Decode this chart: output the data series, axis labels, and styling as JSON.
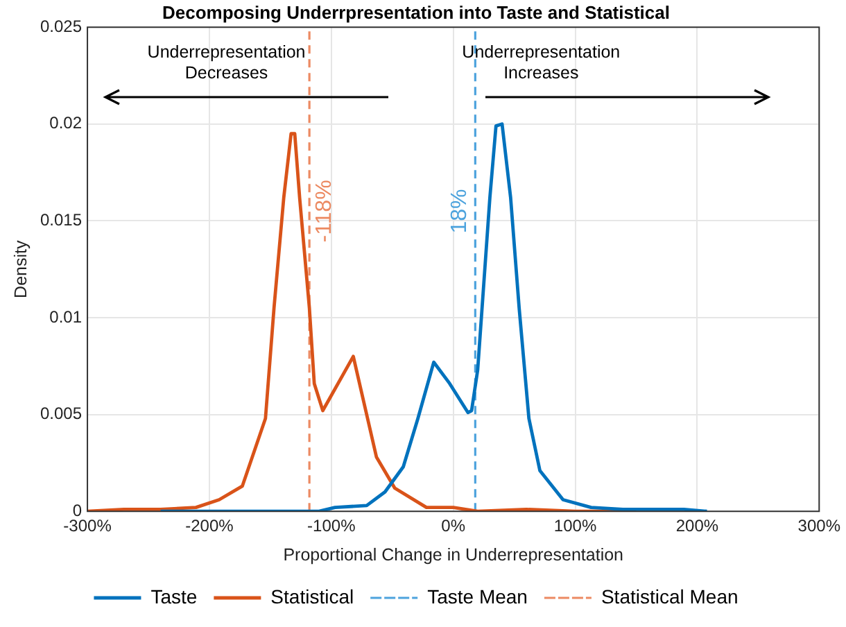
{
  "chart_data": {
    "type": "line",
    "title": "Decomposing Underrpresentation into Taste and Statistical",
    "xlabel": "Proportional Change in Underrepresentation",
    "ylabel": "Density",
    "xlim": [
      -300,
      300
    ],
    "xticks": [
      {
        "value": -300,
        "label": "-300%"
      },
      {
        "value": -200,
        "label": "-200%"
      },
      {
        "value": -100,
        "label": "-100%"
      },
      {
        "value": 0,
        "label": "0%"
      },
      {
        "value": 100,
        "label": "100%"
      },
      {
        "value": 200,
        "label": "200%"
      },
      {
        "value": 300,
        "label": "300%"
      }
    ],
    "ylim": [
      0,
      0.025
    ],
    "yticks": [
      0,
      0.005,
      0.01,
      0.015,
      0.02,
      0.025
    ],
    "grid": true,
    "legend": "bottom",
    "marker": "none",
    "series": [
      {
        "name": "Taste",
        "color": "#0072bd",
        "x": [
          -240,
          -200,
          -150,
          -110,
          -97,
          -71,
          -56,
          -41,
          -29,
          -16,
          -3,
          12,
          15,
          20,
          30,
          35,
          40,
          47,
          54,
          62,
          71,
          90,
          113,
          139,
          189,
          208
        ],
        "values": [
          0,
          0,
          0,
          0,
          0.0002,
          0.0003,
          0.001,
          0.0023,
          0.0048,
          0.0077,
          0.0066,
          0.0051,
          0.0052,
          0.0073,
          0.0162,
          0.0199,
          0.02,
          0.0162,
          0.0105,
          0.0048,
          0.0021,
          0.0006,
          0.0002,
          0.0001,
          0.0001,
          0
        ]
      },
      {
        "name": "Statistical",
        "color": "#d95319",
        "x": [
          -300,
          -270,
          -240,
          -211,
          -192,
          -173,
          -154,
          -147,
          -139,
          -133,
          -130,
          -126,
          -118,
          -114,
          -107,
          -82,
          -63,
          -48,
          -22,
          0,
          20,
          60,
          100,
          150
        ],
        "values": [
          0,
          0.0001,
          0.0001,
          0.0002,
          0.0006,
          0.0013,
          0.0048,
          0.0105,
          0.0162,
          0.0195,
          0.0195,
          0.0162,
          0.0105,
          0.0066,
          0.0052,
          0.008,
          0.0028,
          0.0012,
          0.0002,
          0.0002,
          0,
          0.0001,
          0,
          0
        ]
      },
      {
        "name": "Taste Mean",
        "color": "#4da3dd",
        "type": "line",
        "line_style": "dashed",
        "x": [
          18,
          18
        ],
        "values": [
          0,
          0.025
        ]
      },
      {
        "name": "Statistical Mean",
        "color": "#ec8a62",
        "type": "line",
        "line_style": "dashed",
        "x": [
          -118,
          -118
        ],
        "values": [
          0,
          0.025
        ]
      }
    ],
    "annotations": [
      "Underrepresentation\nDecreases",
      "Underrepresentation\nIncreases",
      {
        "text": "-118%",
        "x": -118,
        "y": 0.0155
      },
      {
        "text": "18%",
        "x": 18,
        "y": 0.0155
      }
    ]
  }
}
